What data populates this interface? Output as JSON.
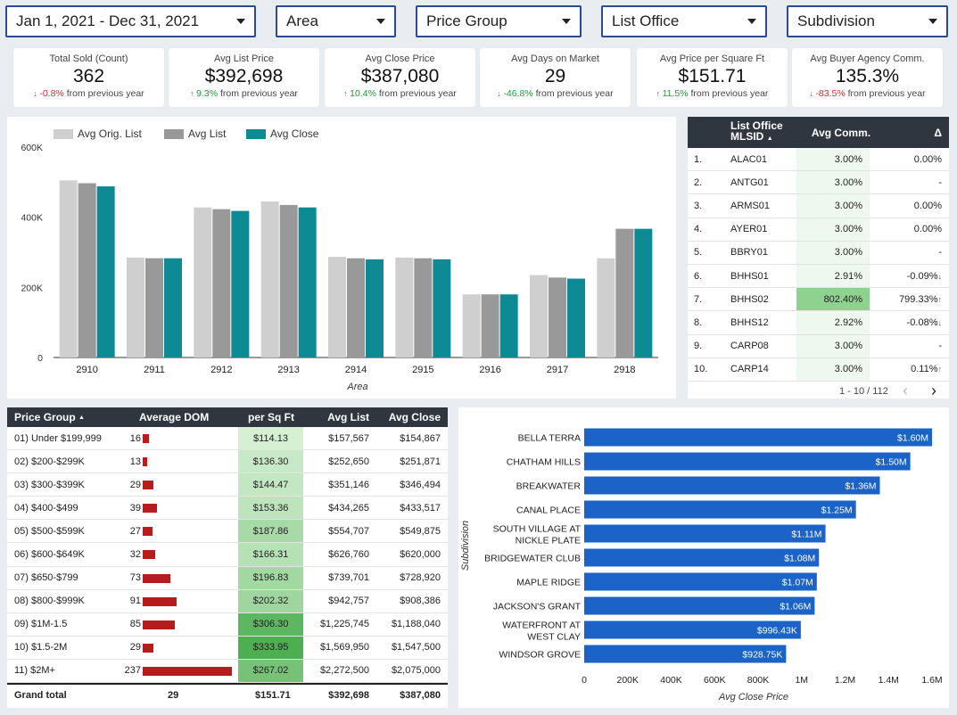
{
  "filters": [
    {
      "label": "Jan 1, 2021 - Dec 31, 2021"
    },
    {
      "label": "Area"
    },
    {
      "label": "Price Group"
    },
    {
      "label": "List Office"
    },
    {
      "label": "Subdivision"
    }
  ],
  "kpis": [
    {
      "title": "Total Sold (Count)",
      "value": "362",
      "delta": "-0.8%",
      "dir": "down",
      "suffix": "from previous year"
    },
    {
      "title": "Avg List Price",
      "value": "$392,698",
      "delta": "9.3%",
      "dir": "up",
      "suffix": "from previous year"
    },
    {
      "title": "Avg Close Price",
      "value": "$387,080",
      "delta": "10.4%",
      "dir": "up",
      "suffix": "from previous year"
    },
    {
      "title": "Avg Days on Market",
      "value": "29",
      "delta": "-46.8%",
      "dir": "down-good",
      "suffix": "from previous year"
    },
    {
      "title": "Avg Price per Square Ft",
      "value": "$151.71",
      "delta": "11.5%",
      "dir": "up",
      "suffix": "from previous year"
    },
    {
      "title": "Avg Buyer Agency Comm.",
      "value": "135.3%",
      "delta": "-83.5%",
      "dir": "down",
      "suffix": "from previous year"
    }
  ],
  "chart_data": [
    {
      "type": "bar",
      "title": "",
      "xlabel": "Area",
      "ylabel": "",
      "ylim": [
        0,
        600000
      ],
      "yticks": [
        "0",
        "200K",
        "400K",
        "600K"
      ],
      "categories": [
        "2910",
        "2911",
        "2912",
        "2913",
        "2914",
        "2915",
        "2916",
        "2917",
        "2918"
      ],
      "series": [
        {
          "name": "Avg Orig. List",
          "color": "#cfcfcf",
          "values": [
            505000,
            285000,
            428000,
            445000,
            287000,
            285000,
            180000,
            235000,
            283000
          ]
        },
        {
          "name": "Avg List",
          "color": "#999999",
          "values": [
            497000,
            283000,
            423000,
            435000,
            283000,
            283000,
            180000,
            228000,
            367000
          ]
        },
        {
          "name": "Avg Close",
          "color": "#0e8a94",
          "values": [
            488000,
            283000,
            418000,
            428000,
            280000,
            280000,
            180000,
            225000,
            367000
          ]
        }
      ],
      "legend_position": "top-left"
    },
    {
      "type": "bar",
      "orientation": "horizontal",
      "title": "",
      "xlabel": "Avg Close Price",
      "ylabel": "Subdivision",
      "xlim": [
        0,
        1600000
      ],
      "xticks": [
        "0",
        "200K",
        "400K",
        "600K",
        "800K",
        "1M",
        "1.2M",
        "1.4M",
        "1.6M"
      ],
      "color": "#1b63c6",
      "categories": [
        "BELLA TERRA",
        "CHATHAM HILLS",
        "BREAKWATER",
        "CANAL PLACE",
        "SOUTH VILLAGE AT|NICKLE PLATE",
        "BRIDGEWATER CLUB",
        "MAPLE RIDGE",
        "JACKSON'S GRANT",
        "WATERFRONT AT|WEST CLAY",
        "WINDSOR GROVE"
      ],
      "values": [
        1600000,
        1500000,
        1360000,
        1250000,
        1110000,
        1080000,
        1070000,
        1060000,
        996430,
        928750
      ],
      "labels": [
        "$1.60M",
        "$1.50M",
        "$1.36M",
        "$1.25M",
        "$1.11M",
        "$1.08M",
        "$1.07M",
        "$1.06M",
        "$996.43K",
        "$928.75K"
      ]
    }
  ],
  "office_table": {
    "headers": {
      "office_line1": "List Office",
      "office_line2": "MLSID",
      "sort_icon": "▲",
      "comm": "Avg Comm.",
      "delta": "Δ"
    },
    "rows": [
      {
        "n": "1.",
        "id": "ALAC01",
        "comm": "3.00%",
        "delta": "0.00%",
        "dir": ""
      },
      {
        "n": "2.",
        "id": "ANTG01",
        "comm": "3.00%",
        "delta": "-",
        "dir": ""
      },
      {
        "n": "3.",
        "id": "ARMS01",
        "comm": "3.00%",
        "delta": "0.00%",
        "dir": ""
      },
      {
        "n": "4.",
        "id": "AYER01",
        "comm": "3.00%",
        "delta": "0.00%",
        "dir": ""
      },
      {
        "n": "5.",
        "id": "BBRY01",
        "comm": "3.00%",
        "delta": "-",
        "dir": ""
      },
      {
        "n": "6.",
        "id": "BHHS01",
        "comm": "2.91%",
        "delta": "-0.09%",
        "dir": "down"
      },
      {
        "n": "7.",
        "id": "BHHS02",
        "comm": "802.40%",
        "delta": "799.33%",
        "dir": "up"
      },
      {
        "n": "8.",
        "id": "BHHS12",
        "comm": "2.92%",
        "delta": "-0.08%",
        "dir": "down"
      },
      {
        "n": "9.",
        "id": "CARP08",
        "comm": "3.00%",
        "delta": "-",
        "dir": ""
      },
      {
        "n": "10.",
        "id": "CARP14",
        "comm": "3.00%",
        "delta": "0.11%",
        "dir": "up"
      }
    ],
    "pagination": "1 - 10 / 112",
    "prev_icon": "‹",
    "next_icon": "›"
  },
  "price_table": {
    "headers": {
      "group": "Price Group",
      "sort_icon": "▲",
      "dom": "Average DOM",
      "sqft": "per Sq Ft",
      "list": "Avg List",
      "close": "Avg Close"
    },
    "rows": [
      {
        "group": "01) Under $199,999",
        "dom": 16,
        "sqft": "$114.13",
        "sqft_v": 114.13,
        "list": "$157,567",
        "close": "$154,867"
      },
      {
        "group": "02) $200-$299K",
        "dom": 13,
        "sqft": "$136.30",
        "sqft_v": 136.3,
        "list": "$252,650",
        "close": "$251,871"
      },
      {
        "group": "03) $300-$399K",
        "dom": 29,
        "sqft": "$144.47",
        "sqft_v": 144.47,
        "list": "$351,146",
        "close": "$346,494"
      },
      {
        "group": "04) $400-$499",
        "dom": 39,
        "sqft": "$153.36",
        "sqft_v": 153.36,
        "list": "$434,265",
        "close": "$433,517"
      },
      {
        "group": "05) $500-$599K",
        "dom": 27,
        "sqft": "$187.86",
        "sqft_v": 187.86,
        "list": "$554,707",
        "close": "$549,875"
      },
      {
        "group": "06) $600-$649K",
        "dom": 32,
        "sqft": "$166.31",
        "sqft_v": 166.31,
        "list": "$626,760",
        "close": "$620,000"
      },
      {
        "group": "07) $650-$799",
        "dom": 73,
        "sqft": "$196.83",
        "sqft_v": 196.83,
        "list": "$739,701",
        "close": "$728,920"
      },
      {
        "group": "08) $800-$999K",
        "dom": 91,
        "sqft": "$202.32",
        "sqft_v": 202.32,
        "list": "$942,757",
        "close": "$908,386"
      },
      {
        "group": "09) $1M-1.5",
        "dom": 85,
        "sqft": "$306.30",
        "sqft_v": 306.3,
        "list": "$1,225,745",
        "close": "$1,188,040"
      },
      {
        "group": "10) $1.5-2M",
        "dom": 29,
        "sqft": "$333.95",
        "sqft_v": 333.95,
        "list": "$1,569,950",
        "close": "$1,547,500"
      },
      {
        "group": "11) $2M+",
        "dom": 237,
        "sqft": "$267.02",
        "sqft_v": 267.02,
        "list": "$2,272,500",
        "close": "$2,075,000"
      }
    ],
    "total": {
      "label": "Grand total",
      "dom": "29",
      "sqft": "$151.71",
      "list": "$392,698",
      "close": "$387,080"
    }
  }
}
